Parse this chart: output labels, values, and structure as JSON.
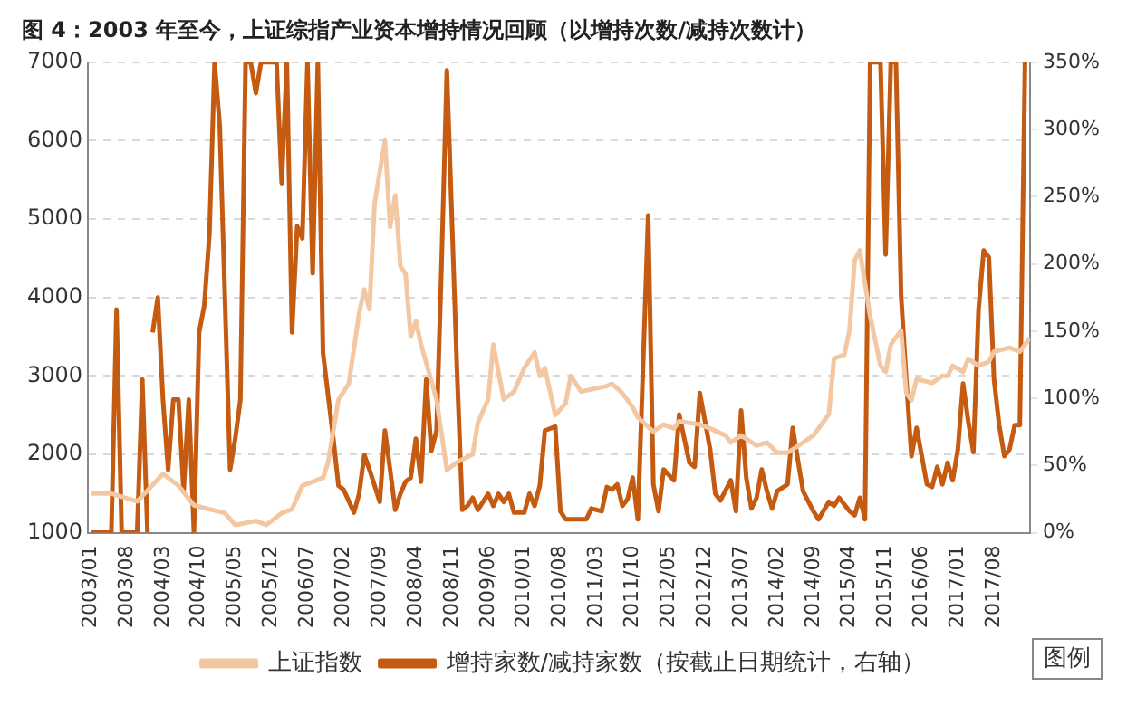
{
  "chart_data": {
    "type": "line",
    "title": "图 4：2003 年至今，上证综指产业资本增持情况回顾（以增持次数/减持次数计）",
    "xlim": [
      "2002-12-15",
      "2018-03"
    ],
    "xticks": [
      {
        "value": "2003-01",
        "label": "2003/01"
      },
      {
        "value": "2003-08",
        "label": "2003/08"
      },
      {
        "value": "2004-03",
        "label": "2004/03"
      },
      {
        "value": "2004-10",
        "label": "2004/10"
      },
      {
        "value": "2005-05",
        "label": "2005/05"
      },
      {
        "value": "2005-12",
        "label": "2005/12"
      },
      {
        "value": "2006-07",
        "label": "2006/07"
      },
      {
        "value": "2007-02",
        "label": "2007/02"
      },
      {
        "value": "2007-09",
        "label": "2007/09"
      },
      {
        "value": "2008-04",
        "label": "2008/04"
      },
      {
        "value": "2008-11",
        "label": "2008/11"
      },
      {
        "value": "2009-06",
        "label": "2009/06"
      },
      {
        "value": "2010-01",
        "label": "2010/01"
      },
      {
        "value": "2010-08",
        "label": "2010/08"
      },
      {
        "value": "2011-03",
        "label": "2011/03"
      },
      {
        "value": "2011-10",
        "label": "2011/10"
      },
      {
        "value": "2012-05",
        "label": "2012/05"
      },
      {
        "value": "2012-12",
        "label": "2012/12"
      },
      {
        "value": "2013-07",
        "label": "2013/07"
      },
      {
        "value": "2014-02",
        "label": "2014/02"
      },
      {
        "value": "2014-09",
        "label": "2014/09"
      },
      {
        "value": "2015-04",
        "label": "2015/04"
      },
      {
        "value": "2015-11",
        "label": "2015/11"
      },
      {
        "value": "2016-06",
        "label": "2016/06"
      },
      {
        "value": "2017-01",
        "label": "2017/01"
      },
      {
        "value": "2017-08",
        "label": "2017/08"
      }
    ],
    "ylim": [
      1000,
      7000
    ],
    "yticks": [
      1000,
      2000,
      3000,
      4000,
      5000,
      6000,
      7000
    ],
    "y2lim": [
      0,
      350
    ],
    "y2ticks": [
      {
        "value": 0,
        "label": "0%"
      },
      {
        "value": 50,
        "label": "50%"
      },
      {
        "value": 100,
        "label": "100%"
      },
      {
        "value": 150,
        "label": "150%"
      },
      {
        "value": 200,
        "label": "200%"
      },
      {
        "value": 250,
        "label": "250%"
      },
      {
        "value": 300,
        "label": "300%"
      },
      {
        "value": 350,
        "label": "350%"
      }
    ],
    "grid": "y",
    "legend": "bottom",
    "marker": "none",
    "annotations": [
      "图例"
    ],
    "series": [
      {
        "name": "上证指数",
        "color": "#f4c7a3",
        "x": [
          "2003-01",
          "2003-05",
          "2003-10",
          "2004-03",
          "2004-06",
          "2004-09",
          "2004-12",
          "2005-03",
          "2005-05",
          "2005-09",
          "2005-11",
          "2006-02",
          "2006-04",
          "2006-06",
          "2006-08",
          "2006-10",
          "2006-11",
          "2007-01",
          "2007-03",
          "2007-05",
          "2007-06",
          "2007-07",
          "2007-08",
          "2007-10",
          "2007-11",
          "2007-12",
          "2008-01",
          "2008-02",
          "2008-03",
          "2008-04",
          "2008-05",
          "2008-08",
          "2008-10",
          "2008-12",
          "2009-03",
          "2009-04",
          "2009-06",
          "2009-07",
          "2009-09",
          "2009-11",
          "2010-01",
          "2010-03",
          "2010-04",
          "2010-05",
          "2010-07",
          "2010-09",
          "2010-10",
          "2010-12",
          "2011-05",
          "2011-06",
          "2011-08",
          "2011-10",
          "2011-11",
          "2012-02",
          "2012-04",
          "2012-06",
          "2012-07",
          "2012-11",
          "2013-01",
          "2013-04",
          "2013-05",
          "2013-07",
          "2013-10",
          "2013-12",
          "2014-02",
          "2014-04",
          "2014-07",
          "2014-09",
          "2014-12",
          "2015-01",
          "2015-03",
          "2015-04",
          "2015-05",
          "2015-06",
          "2015-08",
          "2015-10",
          "2015-11",
          "2015-12",
          "2016-01",
          "2016-02",
          "2016-03",
          "2016-04",
          "2016-05",
          "2016-08",
          "2016-10",
          "2016-11",
          "2016-12",
          "2017-02",
          "2017-03",
          "2017-05",
          "2017-07",
          "2017-08",
          "2017-11",
          "2018-01",
          "2018-03"
        ],
        "values": [
          1500,
          1500,
          1400,
          1750,
          1600,
          1350,
          1300,
          1250,
          1100,
          1150,
          1100,
          1250,
          1300,
          1600,
          1650,
          1700,
          1900,
          2700,
          2900,
          3800,
          4100,
          3850,
          5200,
          6000,
          4900,
          5300,
          4400,
          4300,
          3500,
          3700,
          3400,
          2700,
          1800,
          1900,
          2000,
          2400,
          2700,
          3400,
          2700,
          2800,
          3100,
          3300,
          3000,
          3100,
          2500,
          2650,
          3000,
          2800,
          2870,
          2900,
          2780,
          2600,
          2470,
          2290,
          2380,
          2330,
          2420,
          2380,
          2330,
          2240,
          2150,
          2240,
          2110,
          2150,
          2020,
          2020,
          2150,
          2240,
          2510,
          3220,
          3270,
          3580,
          4470,
          4600,
          3760,
          3130,
          3050,
          3400,
          3490,
          3580,
          2780,
          2690,
          2960,
          2910,
          3000,
          3000,
          3130,
          3050,
          3220,
          3130,
          3180,
          3310,
          3360,
          3310,
          3490
        ]
      },
      {
        "name": "增持家数/减持家数（按截止日期统计，右轴）",
        "color": "#c55a11",
        "axis": "y2",
        "x": [
          "2003-01",
          "2003-05",
          "2003-06",
          "2003-07",
          "2003-10",
          "2003-11",
          "2003-12",
          "2003-12-20",
          "2004-01",
          "2004-02",
          "2004-03",
          "2004-04",
          "2004-05",
          "2004-06",
          "2004-07",
          "2004-08",
          "2004-09",
          "2004-10",
          "2004-11",
          "2004-12",
          "2005-01",
          "2005-02",
          "2005-03",
          "2005-04",
          "2005-05",
          "2005-06",
          "2005-07",
          "2005-08",
          "2005-09",
          "2005-10",
          "2006-01",
          "2006-02",
          "2006-03",
          "2006-04",
          "2006-05",
          "2006-06",
          "2006-07",
          "2006-08",
          "2006-09",
          "2006-10",
          "2006-12",
          "2007-01",
          "2007-02",
          "2007-04",
          "2007-05",
          "2007-06",
          "2007-07",
          "2007-09",
          "2007-10",
          "2007-11",
          "2007-12",
          "2008-01",
          "2008-02",
          "2008-03",
          "2008-04",
          "2008-05",
          "2008-06",
          "2008-07",
          "2008-08",
          "2008-09",
          "2008-10",
          "2008-12",
          "2009-01",
          "2009-02",
          "2009-03",
          "2009-04",
          "2009-06",
          "2009-07",
          "2009-08",
          "2009-09",
          "2009-10",
          "2009-11",
          "2010-01",
          "2010-02",
          "2010-03",
          "2010-04",
          "2010-05",
          "2010-07",
          "2010-08",
          "2010-09",
          "2011-01",
          "2011-02",
          "2011-04",
          "2011-05",
          "2011-06",
          "2011-07",
          "2011-08",
          "2011-09",
          "2011-10",
          "2011-11",
          "2012-01",
          "2012-02",
          "2012-03",
          "2012-04",
          "2012-06",
          "2012-07",
          "2012-09",
          "2012-10",
          "2012-11",
          "2013-01",
          "2013-02",
          "2013-03",
          "2013-05",
          "2013-06",
          "2013-07",
          "2013-08",
          "2013-09",
          "2013-10",
          "2013-11",
          "2013-12",
          "2014-01",
          "2014-02",
          "2014-04",
          "2014-05",
          "2014-06",
          "2014-07",
          "2014-09",
          "2014-10",
          "2014-12",
          "2015-01",
          "2015-02",
          "2015-04",
          "2015-05",
          "2015-06",
          "2015-07",
          "2015-08",
          "2015-10",
          "2015-11",
          "2015-12",
          "2016-01",
          "2016-02",
          "2016-03",
          "2016-04",
          "2016-05",
          "2016-07",
          "2016-08",
          "2016-09",
          "2016-10",
          "2016-11",
          "2016-12",
          "2017-01",
          "2017-02",
          "2017-03",
          "2017-04",
          "2017-05",
          "2017-06",
          "2017-07",
          "2017-08",
          "2017-09",
          "2017-10",
          "2017-11",
          "2017-12",
          "2018-01",
          "2018-02"
        ],
        "values": [
          0,
          0,
          166,
          0,
          0,
          114,
          0,
          null,
          149,
          175,
          99,
          47,
          99,
          99,
          31,
          99,
          0,
          149,
          169,
          222,
          350,
          303,
          175,
          47,
          70,
          99,
          350,
          350,
          327,
          350,
          350,
          260,
          350,
          149,
          228,
          219,
          350,
          193,
          350,
          134,
          70,
          35,
          32,
          15,
          29,
          58,
          47,
          23,
          76,
          47,
          17,
          29,
          38,
          41,
          70,
          38,
          114,
          61,
          76,
          204,
          344,
          117,
          17,
          20,
          26,
          17,
          29,
          20,
          29,
          23,
          29,
          15,
          15,
          29,
          20,
          35,
          76,
          79,
          16,
          10,
          10,
          18,
          16,
          34,
          32,
          36,
          20,
          25,
          41,
          10,
          236,
          36,
          16,
          47,
          39,
          88,
          52,
          49,
          104,
          62,
          29,
          24,
          39,
          16,
          91,
          41,
          18,
          26,
          47,
          31,
          18,
          31,
          36,
          78,
          54,
          31,
          16,
          10,
          23,
          20,
          26,
          16,
          13,
          26,
          10,
          350,
          350,
          207,
          350,
          350,
          176,
          114,
          57,
          78,
          36,
          34,
          49,
          36,
          52,
          39,
          62,
          111,
          83,
          60,
          166,
          210,
          205,
          114,
          80,
          57,
          62,
          80,
          80,
          350
        ]
      }
    ]
  }
}
